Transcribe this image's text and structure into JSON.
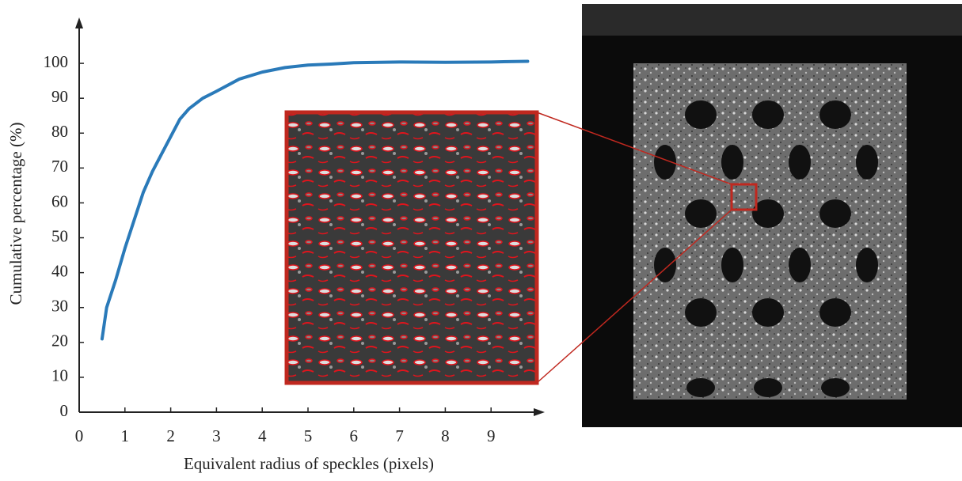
{
  "chart_data": {
    "type": "line",
    "x_label": "Equivalent radius of speckles (pixels)",
    "y_label": "Cumulative percentage (%)",
    "x": [
      0.5,
      0.6,
      0.8,
      1.0,
      1.2,
      1.4,
      1.6,
      1.8,
      2.0,
      2.2,
      2.4,
      2.7,
      3.0,
      3.5,
      4.0,
      4.5,
      5.0,
      5.5,
      6.0,
      7.0,
      8.0,
      9.0,
      9.8
    ],
    "series": [
      {
        "color": "#2a7ab9",
        "values": [
          21,
          30,
          38,
          47,
          55,
          63,
          69,
          74,
          79,
          84,
          87,
          90,
          92,
          95.5,
          97.5,
          98.8,
          99.5,
          99.8,
          100.2,
          100.4,
          100.3,
          100.4,
          100.6
        ]
      }
    ],
    "xlim": [
      0,
      10
    ],
    "ylim": [
      0,
      110
    ],
    "xticks": [
      0,
      1,
      2,
      3,
      4,
      5,
      6,
      7,
      8,
      9
    ],
    "yticks": [
      0,
      10,
      20,
      30,
      40,
      50,
      60,
      70,
      80,
      90,
      100
    ]
  }
}
